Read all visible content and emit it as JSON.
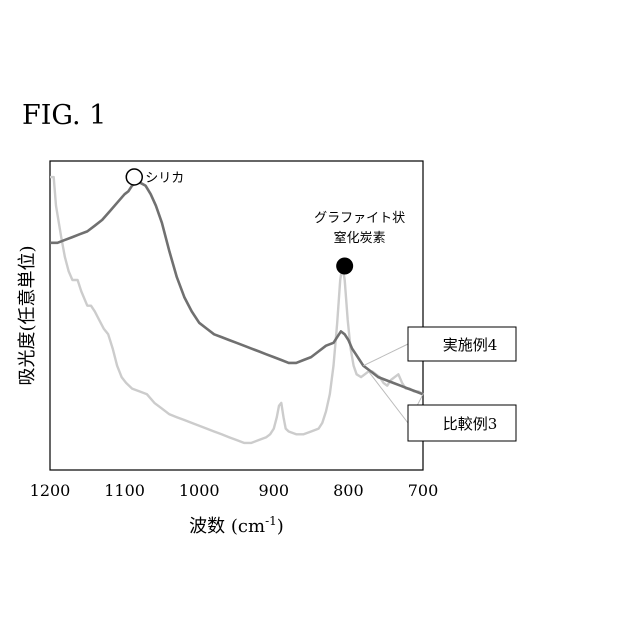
{
  "figure_label": "FIG.  1",
  "chart_data": {
    "type": "line",
    "xlabel": "波数 (cm",
    "xlabel_sup": "-1",
    "xlabel_tail": ")",
    "ylabel": "吸光度(任意単位)",
    "xlim": [
      1200,
      700
    ],
    "ylim": [
      0,
      1
    ],
    "x_ticks": [
      "1200",
      "1100",
      "1000",
      "900",
      "800",
      "700"
    ],
    "x_tick_values": [
      1200,
      1100,
      1000,
      900,
      800,
      700
    ],
    "grid": false,
    "annotations": {
      "silica_label": "シリカ",
      "silica_marker": "open-circle",
      "silica_x": 1079,
      "graphite_label_line1": "グラファイト状",
      "graphite_label_line2": "窒化炭素",
      "graphite_marker": "filled-circle",
      "graphite_x": 805
    },
    "series": [
      {
        "name": "実施例4",
        "color": "#707070",
        "points": [
          [
            1200,
            0.73
          ],
          [
            1190,
            0.73
          ],
          [
            1180,
            0.74
          ],
          [
            1170,
            0.75
          ],
          [
            1160,
            0.76
          ],
          [
            1150,
            0.77
          ],
          [
            1140,
            0.79
          ],
          [
            1130,
            0.81
          ],
          [
            1120,
            0.84
          ],
          [
            1110,
            0.87
          ],
          [
            1100,
            0.9
          ],
          [
            1095,
            0.91
          ],
          [
            1090,
            0.93
          ],
          [
            1085,
            0.94
          ],
          [
            1079,
            0.94
          ],
          [
            1072,
            0.93
          ],
          [
            1065,
            0.9
          ],
          [
            1058,
            0.86
          ],
          [
            1050,
            0.8
          ],
          [
            1040,
            0.7
          ],
          [
            1030,
            0.61
          ],
          [
            1020,
            0.54
          ],
          [
            1010,
            0.49
          ],
          [
            1000,
            0.45
          ],
          [
            990,
            0.43
          ],
          [
            980,
            0.41
          ],
          [
            970,
            0.4
          ],
          [
            960,
            0.39
          ],
          [
            950,
            0.38
          ],
          [
            940,
            0.37
          ],
          [
            930,
            0.36
          ],
          [
            920,
            0.35
          ],
          [
            910,
            0.34
          ],
          [
            900,
            0.33
          ],
          [
            890,
            0.32
          ],
          [
            880,
            0.31
          ],
          [
            870,
            0.31
          ],
          [
            860,
            0.32
          ],
          [
            850,
            0.33
          ],
          [
            840,
            0.35
          ],
          [
            830,
            0.37
          ],
          [
            820,
            0.38
          ],
          [
            815,
            0.4
          ],
          [
            810,
            0.42
          ],
          [
            805,
            0.41
          ],
          [
            800,
            0.39
          ],
          [
            795,
            0.36
          ],
          [
            790,
            0.34
          ],
          [
            785,
            0.32
          ],
          [
            780,
            0.3
          ],
          [
            770,
            0.28
          ],
          [
            760,
            0.26
          ],
          [
            750,
            0.25
          ],
          [
            740,
            0.24
          ],
          [
            730,
            0.23
          ],
          [
            720,
            0.22
          ],
          [
            710,
            0.21
          ],
          [
            700,
            0.2
          ]
        ]
      },
      {
        "name": "比較例3",
        "color": "#cccccc",
        "points": [
          [
            1200,
            0.96
          ],
          [
            1195,
            0.96
          ],
          [
            1192,
            0.86
          ],
          [
            1185,
            0.75
          ],
          [
            1180,
            0.68
          ],
          [
            1175,
            0.63
          ],
          [
            1170,
            0.6
          ],
          [
            1163,
            0.6
          ],
          [
            1158,
            0.56
          ],
          [
            1150,
            0.51
          ],
          [
            1145,
            0.51
          ],
          [
            1140,
            0.49
          ],
          [
            1134,
            0.46
          ],
          [
            1128,
            0.43
          ],
          [
            1122,
            0.41
          ],
          [
            1116,
            0.36
          ],
          [
            1110,
            0.3
          ],
          [
            1104,
            0.26
          ],
          [
            1098,
            0.24
          ],
          [
            1090,
            0.22
          ],
          [
            1080,
            0.21
          ],
          [
            1070,
            0.2
          ],
          [
            1060,
            0.17
          ],
          [
            1050,
            0.15
          ],
          [
            1040,
            0.13
          ],
          [
            1030,
            0.12
          ],
          [
            1020,
            0.11
          ],
          [
            1010,
            0.1
          ],
          [
            1000,
            0.09
          ],
          [
            990,
            0.08
          ],
          [
            980,
            0.07
          ],
          [
            970,
            0.06
          ],
          [
            960,
            0.05
          ],
          [
            950,
            0.04
          ],
          [
            940,
            0.03
          ],
          [
            930,
            0.03
          ],
          [
            920,
            0.04
          ],
          [
            910,
            0.05
          ],
          [
            905,
            0.06
          ],
          [
            900,
            0.08
          ],
          [
            896,
            0.12
          ],
          [
            893,
            0.16
          ],
          [
            890,
            0.17
          ],
          [
            887,
            0.12
          ],
          [
            884,
            0.08
          ],
          [
            880,
            0.07
          ],
          [
            870,
            0.06
          ],
          [
            860,
            0.06
          ],
          [
            850,
            0.07
          ],
          [
            840,
            0.08
          ],
          [
            835,
            0.1
          ],
          [
            830,
            0.14
          ],
          [
            825,
            0.2
          ],
          [
            820,
            0.3
          ],
          [
            815,
            0.45
          ],
          [
            811,
            0.6
          ],
          [
            808,
            0.65
          ],
          [
            805,
            0.6
          ],
          [
            801,
            0.46
          ],
          [
            797,
            0.36
          ],
          [
            793,
            0.3
          ],
          [
            789,
            0.27
          ],
          [
            783,
            0.26
          ],
          [
            778,
            0.27
          ],
          [
            773,
            0.28
          ],
          [
            768,
            0.28
          ],
          [
            763,
            0.27
          ],
          [
            758,
            0.26
          ],
          [
            753,
            0.24
          ],
          [
            748,
            0.23
          ],
          [
            743,
            0.25
          ],
          [
            738,
            0.26
          ],
          [
            733,
            0.27
          ],
          [
            728,
            0.24
          ],
          [
            723,
            0.22
          ],
          [
            718,
            0.22
          ],
          [
            712,
            0.21
          ],
          [
            706,
            0.21
          ],
          [
            700,
            0.2
          ]
        ]
      }
    ]
  }
}
